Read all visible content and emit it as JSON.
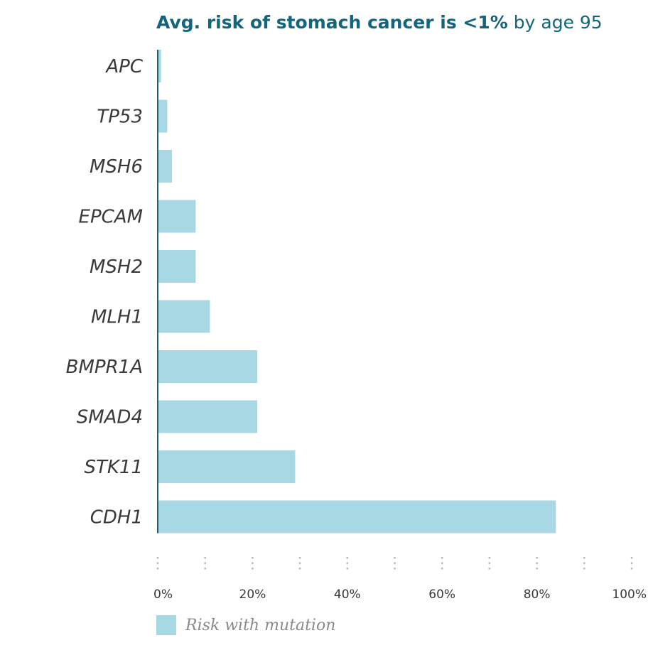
{
  "title": {
    "bold_part": "Avg. risk of stomach cancer is <1%",
    "normal_part": "by age 95"
  },
  "colors": {
    "bar": "#a8d8e3",
    "axis": "#1d5f73",
    "title": "#13657f",
    "gridline_dots": "#b8b8b8"
  },
  "legend": {
    "label": "Risk with mutation"
  },
  "chart_data": {
    "type": "bar",
    "orientation": "horizontal",
    "title": "Avg. risk of stomach cancer is <1% by age 95",
    "categories": [
      "APC",
      "TP53",
      "MSH6",
      "EPCAM",
      "MSH2",
      "MLH1",
      "BMPR1A",
      "SMAD4",
      "STK11",
      "CDH1"
    ],
    "series": [
      {
        "name": "Risk with mutation",
        "values": [
          0.7,
          2,
          3,
          8,
          8,
          11,
          21,
          21,
          29,
          84
        ]
      }
    ],
    "xlim": [
      0,
      100
    ],
    "x_ticks": [
      "0%",
      "20%",
      "40%",
      "60%",
      "80%",
      "100%"
    ],
    "x_tick_values": [
      0,
      20,
      40,
      60,
      80,
      100
    ],
    "minor_grid_values": [
      0,
      10,
      20,
      30,
      40,
      50,
      60,
      70,
      80,
      90,
      100
    ],
    "grid": "dotted tick marks below bars",
    "legend_position": "bottom-left"
  }
}
